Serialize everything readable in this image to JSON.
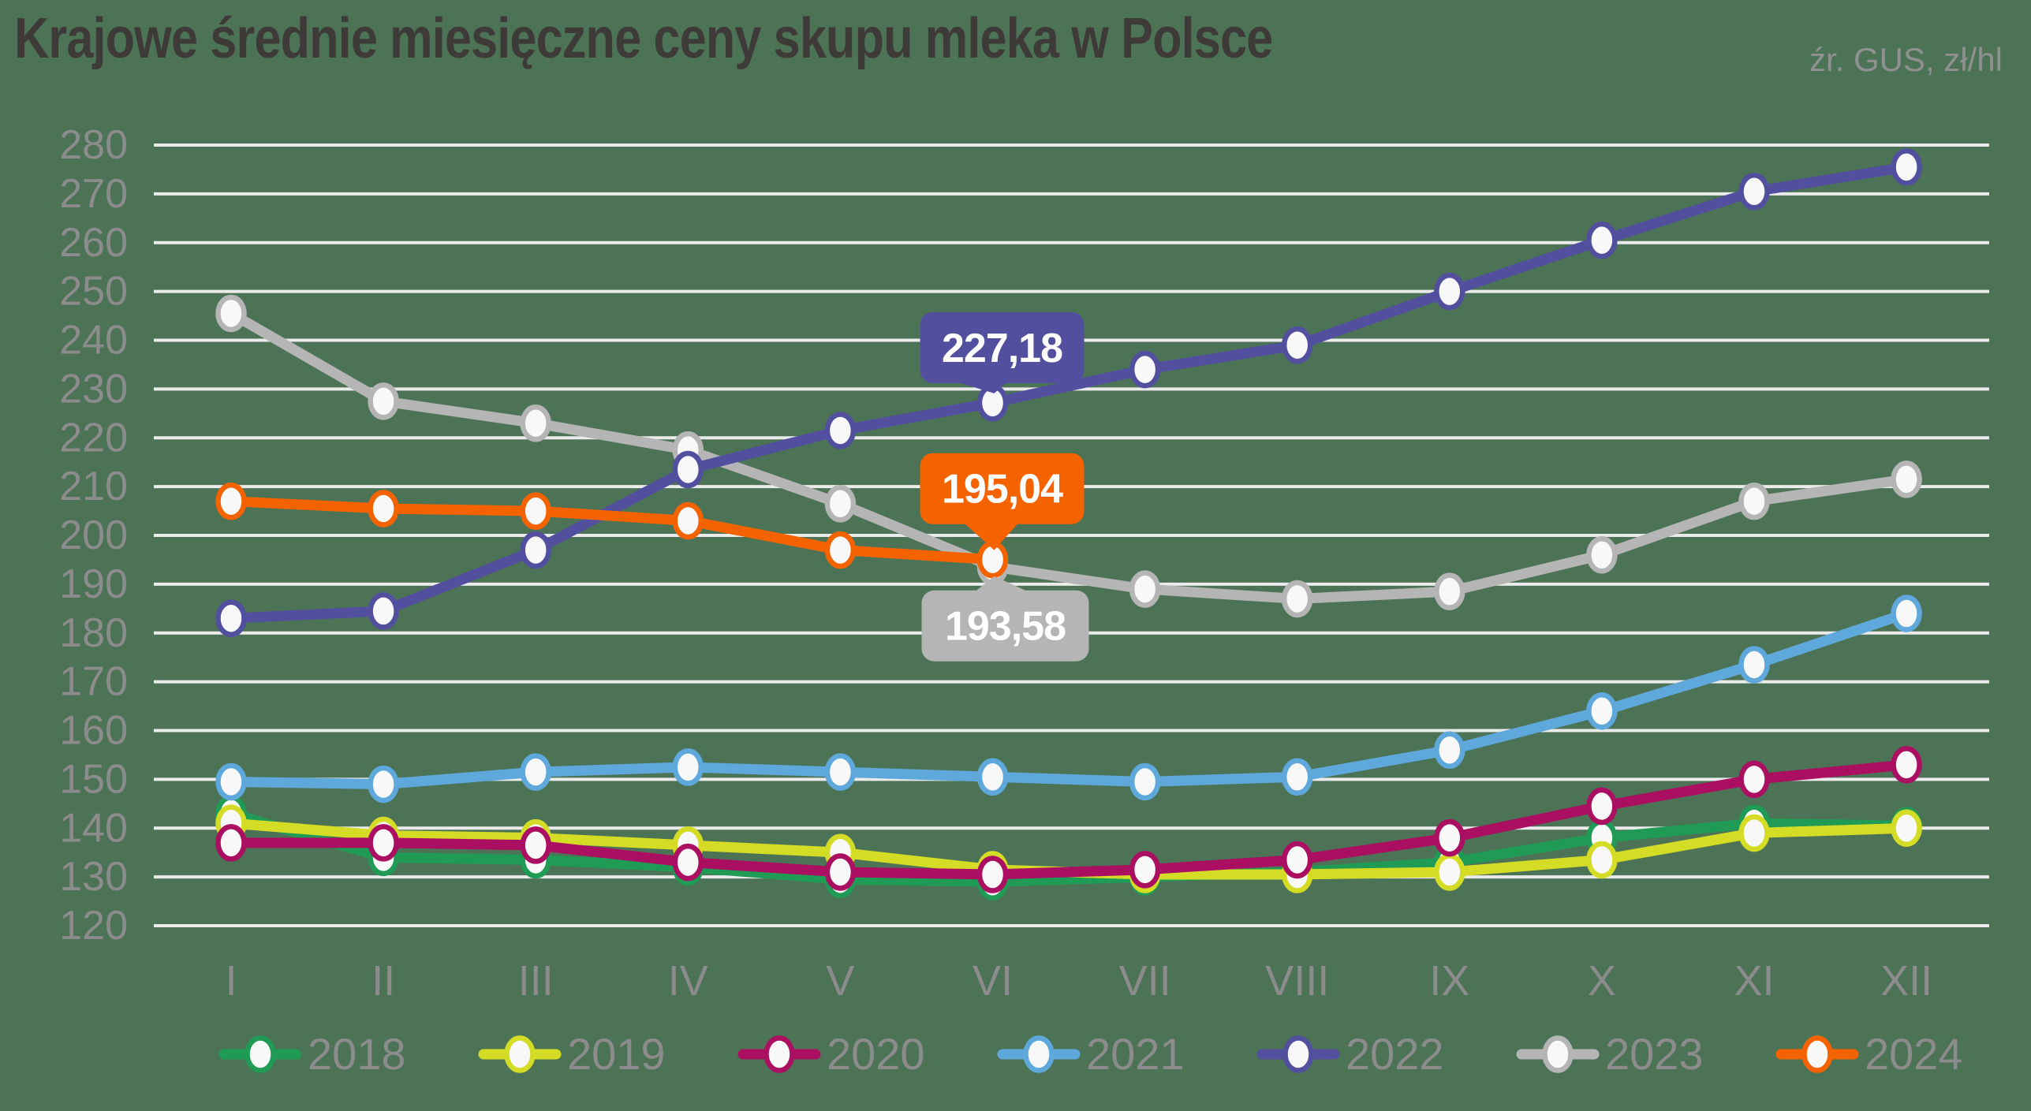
{
  "title": "Krajowe średnie miesięczne ceny skupu mleka w Polsce",
  "source": "źr. GUS, zł/hl",
  "colors": {
    "background": "#4d7356",
    "title_text": "#3e3a38",
    "source_text": "#8f9190",
    "axis_text": "#8c8c8c",
    "gridline": "#ebebeb",
    "marker_fill": "#f8f8f8",
    "callout_text": "#ffffff",
    "s2018": "#1f9b55",
    "s2019": "#d4dc26",
    "s2020": "#ab0f62",
    "s2021": "#5fa8dc",
    "s2022": "#524f9e",
    "s2023": "#b5b5b5",
    "s2024": "#f56300"
  },
  "chart_data": {
    "type": "line",
    "title": "Krajowe średnie miesięczne ceny skupu mleka w Polsce",
    "subtitle": "źr. GUS, zł/hl",
    "xlabel": "",
    "ylabel": "zł/hl",
    "categories": [
      "I",
      "II",
      "III",
      "IV",
      "V",
      "VI",
      "VII",
      "VIII",
      "IX",
      "X",
      "XI",
      "XII"
    ],
    "ylim": [
      120,
      280
    ],
    "ytick_step": 10,
    "grid": true,
    "legend_position": "bottom",
    "series": [
      {
        "name": "2018",
        "color_key": "s2018",
        "values": [
          143,
          134,
          133.5,
          132,
          129.5,
          129,
          130,
          131,
          133,
          138,
          141,
          140.5
        ]
      },
      {
        "name": "2019",
        "color_key": "s2019",
        "values": [
          141,
          138.5,
          138,
          136.5,
          135,
          131.5,
          130.5,
          130.5,
          131,
          133.5,
          139,
          140
        ]
      },
      {
        "name": "2020",
        "color_key": "s2020",
        "values": [
          137,
          137,
          136.5,
          133,
          131,
          130.5,
          131.5,
          133.5,
          138,
          144.5,
          150,
          153
        ]
      },
      {
        "name": "2021",
        "color_key": "s2021",
        "values": [
          149.5,
          149,
          151.5,
          152.5,
          151.5,
          150.5,
          149.5,
          150.5,
          156,
          164,
          173.5,
          184
        ]
      },
      {
        "name": "2022",
        "color_key": "s2022",
        "values": [
          183,
          184.5,
          197,
          213.5,
          221.5,
          227.18,
          234,
          239,
          250,
          260.5,
          270.5,
          275.5
        ]
      },
      {
        "name": "2023",
        "color_key": "s2023",
        "values": [
          245.5,
          227.5,
          223,
          217.5,
          206.5,
          193.58,
          189,
          187,
          188.5,
          196,
          207,
          211.5
        ]
      },
      {
        "name": "2024",
        "color_key": "s2024",
        "values": [
          207,
          205.5,
          205,
          203,
          197,
          195.04
        ]
      }
    ],
    "annotations": [
      {
        "text": "227,18",
        "series": "2022",
        "month_index": 5,
        "placement": "above"
      },
      {
        "text": "195,04",
        "series": "2024",
        "month_index": 5,
        "placement": "above-far"
      },
      {
        "text": "193,58",
        "series": "2023",
        "month_index": 5,
        "placement": "below"
      }
    ]
  }
}
